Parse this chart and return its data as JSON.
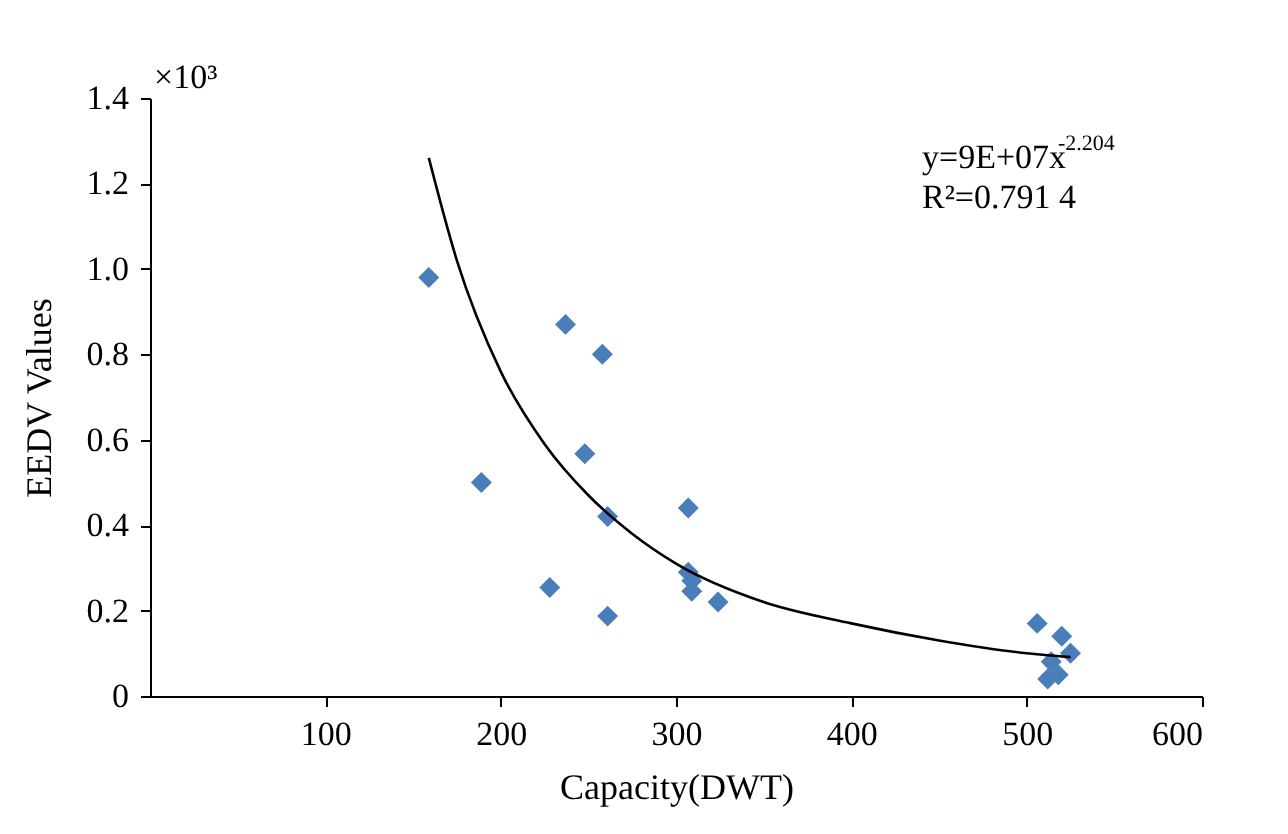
{
  "chart_data": {
    "type": "scatter",
    "xlabel": "Capacity(DWT)",
    "ylabel": "EEDV Values",
    "xlim": [
      0,
      600
    ],
    "xticks": [
      100,
      200,
      300,
      400,
      500,
      600
    ],
    "ylim": [
      0,
      1.4
    ],
    "yticks": [
      0,
      0.2,
      0.4,
      0.6,
      0.8,
      {
        "value": 1,
        "label": "1.0"
      },
      1.2,
      1.4
    ],
    "grid": false,
    "annotations": [
      "×10³",
      "y=9E+07x$^{-2.204}$",
      "R²=0.791 4"
    ],
    "series": [
      {
        "marker": "diamond",
        "color": "#4a7ebb",
        "x": [
          159,
          189,
          228,
          237,
          248,
          258,
          261,
          261,
          307,
          307,
          309,
          309,
          324,
          506,
          512,
          514,
          518,
          520,
          525
        ],
        "values": [
          0.98,
          0.5,
          0.254,
          0.87,
          0.567,
          0.8,
          0.42,
          0.187,
          0.44,
          0.29,
          0.27,
          0.245,
          0.22,
          0.17,
          0.04,
          0.08,
          0.05,
          0.14,
          0.1
        ]
      },
      {
        "type": "line",
        "color": "#000000",
        "x": [
          159,
          175,
          200,
          225,
          250,
          275,
          300,
          350,
          400,
          450,
          500,
          525
        ],
        "values": [
          1.26,
          1.02,
          0.76,
          0.59,
          0.47,
          0.38,
          0.31,
          0.22,
          0.17,
          0.13,
          0.1,
          0.091
        ]
      }
    ]
  }
}
